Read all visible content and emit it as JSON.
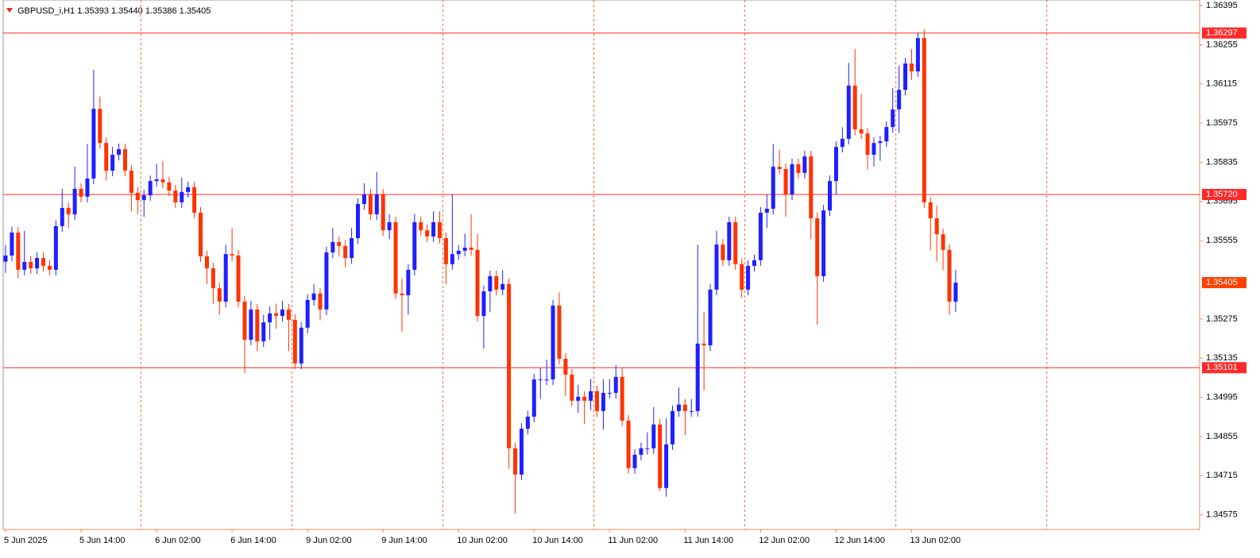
{
  "chart_data": {
    "type": "candlestick",
    "title": "GBPUSD_i,H1  1.35393 1.35440 1.35386 1.35405",
    "categories": [
      "5 Jun 2025",
      null,
      null,
      null,
      null,
      null,
      null,
      null,
      null,
      null,
      null,
      null,
      "5 Jun 14:00",
      null,
      null,
      null,
      null,
      null,
      null,
      null,
      null,
      null,
      null,
      null,
      "6 Jun 02:00",
      null,
      null,
      null,
      null,
      null,
      null,
      null,
      null,
      null,
      null,
      null,
      "6 Jun 14:00",
      null,
      null,
      null,
      null,
      null,
      null,
      null,
      null,
      null,
      null,
      null,
      "9 Jun 02:00",
      null,
      null,
      null,
      null,
      null,
      null,
      null,
      null,
      null,
      null,
      null,
      "9 Jun 14:00",
      null,
      null,
      null,
      null,
      null,
      null,
      null,
      null,
      null,
      null,
      null,
      "10 Jun 02:00",
      null,
      null,
      null,
      null,
      null,
      null,
      null,
      null,
      null,
      null,
      null,
      "10 Jun 14:00",
      null,
      null,
      null,
      null,
      null,
      null,
      null,
      null,
      null,
      null,
      null,
      "11 Jun 02:00",
      null,
      null,
      null,
      null,
      null,
      null,
      null,
      null,
      null,
      null,
      null,
      "11 Jun 14:00",
      null,
      null,
      null,
      null,
      null,
      null,
      null,
      null,
      null,
      null,
      null,
      "12 Jun 02:00",
      null,
      null,
      null,
      null,
      null,
      null,
      null,
      null,
      null,
      null,
      null,
      "12 Jun 14:00",
      null,
      null,
      null,
      null,
      null,
      null,
      null,
      null,
      null,
      null,
      null,
      "13 Jun 02:00",
      null,
      null,
      null,
      null,
      null,
      null,
      null
    ],
    "open": [
      1.3548,
      1.35502,
      1.35584,
      1.35451,
      1.35479,
      1.35456,
      1.35493,
      1.35465,
      1.35451,
      1.35607,
      1.35672,
      1.35649,
      1.3574,
      1.35712,
      1.35777,
      1.36026,
      1.35904,
      1.35805,
      1.35862,
      1.35882,
      1.35805,
      1.35726,
      1.357,
      1.35717,
      1.35768,
      1.35774,
      1.35763,
      1.35734,
      1.35692,
      1.35729,
      1.35746,
      1.35655,
      1.35499,
      1.35456,
      1.35385,
      1.35337,
      1.35507,
      1.35502,
      1.35337,
      1.35201,
      1.35309,
      1.35195,
      1.35263,
      1.35295,
      1.35286,
      1.35309,
      1.35272,
      1.35116,
      1.35244,
      1.35343,
      1.35366,
      1.35309,
      1.35513,
      1.3555,
      1.35536,
      1.35493,
      1.35564,
      1.35686,
      1.3572,
      1.35649,
      1.3572,
      1.35592,
      1.35621,
      1.35366,
      1.3536,
      1.35451,
      1.35621,
      1.35592,
      1.3557,
      1.35621,
      1.35564,
      1.35471,
      1.35507,
      1.35519,
      1.3553,
      1.35522,
      1.35286,
      1.35374,
      1.35428,
      1.3538,
      1.354,
      1.34813,
      1.34719,
      1.34883,
      1.34926,
      1.35059,
      1.35059,
      1.35059,
      1.35323,
      1.35133,
      1.35076,
      1.34983,
      1.34997,
      1.34983,
      1.35017,
      1.34946,
      1.35011,
      1.35011,
      1.35068,
      1.34912,
      1.34742,
      1.3479,
      1.34813,
      1.34813,
      1.34898,
      1.34671,
      1.34827,
      1.34946,
      1.34969,
      1.34946,
      1.34946,
      1.35187,
      1.35181,
      1.3538,
      1.35541,
      1.35485,
      1.35621,
      1.35471,
      1.3538,
      1.35465,
      1.35485,
      1.35655,
      1.35669,
      1.35819,
      1.35811,
      1.3572,
      1.35828,
      1.35797,
      1.35856,
      1.35635,
      1.35428,
      1.35663,
      1.35768,
      1.3589,
      1.35919,
      1.36109,
      1.35953,
      1.35938,
      1.35862,
      1.35904,
      1.3591,
      1.35961,
      1.36024,
      1.36094,
      1.36188,
      1.3616,
      1.36279,
      1.35692,
      1.35635,
      1.35578,
      1.35522,
      1.35337
    ],
    "high": [
      1.3554,
      1.35604,
      1.35604,
      1.3559,
      1.35499,
      1.35513,
      1.35513,
      1.35485,
      1.35627,
      1.3574,
      1.35692,
      1.3582,
      1.3576,
      1.359,
      1.36165,
      1.3607,
      1.35924,
      1.3589,
      1.35902,
      1.35902,
      1.35825,
      1.35746,
      1.35737,
      1.35788,
      1.3583,
      1.3584,
      1.35783,
      1.35754,
      1.3578,
      1.35766,
      1.35766,
      1.35675,
      1.35519,
      1.35476,
      1.35405,
      1.3554,
      1.356,
      1.35522,
      1.35357,
      1.3534,
      1.35329,
      1.3529,
      1.3532,
      1.3533,
      1.3534,
      1.35329,
      1.35292,
      1.35264,
      1.35363,
      1.354,
      1.35386,
      1.35533,
      1.356,
      1.3557,
      1.35556,
      1.356,
      1.35706,
      1.3576,
      1.3574,
      1.358,
      1.3574,
      1.3565,
      1.35641,
      1.3542,
      1.35471,
      1.3565,
      1.35641,
      1.35612,
      1.3566,
      1.3566,
      1.35584,
      1.3572,
      1.35539,
      1.3558,
      1.3565,
      1.3558,
      1.35394,
      1.35448,
      1.35448,
      1.3545,
      1.3542,
      1.34833,
      1.34903,
      1.34946,
      1.35079,
      1.351,
      1.3513,
      1.35343,
      1.3537,
      1.35153,
      1.35096,
      1.3504,
      1.35017,
      1.3506,
      1.35037,
      1.3506,
      1.3506,
      1.3511,
      1.351,
      1.34932,
      1.3481,
      1.34833,
      1.3487,
      1.3496,
      1.34918,
      1.3492,
      1.34966,
      1.3503,
      1.34989,
      1.3499,
      1.3554,
      1.353,
      1.354,
      1.3559,
      1.35561,
      1.35641,
      1.35641,
      1.35491,
      1.35485,
      1.35505,
      1.35675,
      1.3572,
      1.359,
      1.3588,
      1.35831,
      1.35848,
      1.35848,
      1.35876,
      1.35876,
      1.35655,
      1.35683,
      1.35788,
      1.3591,
      1.3596,
      1.3619,
      1.3624,
      1.3608,
      1.35958,
      1.35924,
      1.3593,
      1.35981,
      1.361,
      1.3618,
      1.36208,
      1.3624,
      1.36299,
      1.3631,
      1.35712,
      1.3568,
      1.35598,
      1.35542,
      1.3545
    ],
    "low": [
      1.3544,
      1.35482,
      1.3542,
      1.35431,
      1.35436,
      1.35436,
      1.35445,
      1.35431,
      1.35431,
      1.35587,
      1.356,
      1.35629,
      1.35692,
      1.35692,
      1.35757,
      1.35884,
      1.3577,
      1.35785,
      1.35842,
      1.35785,
      1.3566,
      1.3565,
      1.3564,
      1.35697,
      1.35748,
      1.35743,
      1.35714,
      1.35672,
      1.35672,
      1.35709,
      1.35635,
      1.35479,
      1.354,
      1.3533,
      1.3529,
      1.35317,
      1.35482,
      1.35317,
      1.35082,
      1.35181,
      1.3516,
      1.35175,
      1.352,
      1.3524,
      1.35266,
      1.3516,
      1.35096,
      1.35096,
      1.35224,
      1.35323,
      1.3527,
      1.35289,
      1.35493,
      1.355,
      1.3546,
      1.35473,
      1.35544,
      1.35666,
      1.35629,
      1.35629,
      1.35572,
      1.3556,
      1.35346,
      1.3523,
      1.3529,
      1.35431,
      1.35572,
      1.3555,
      1.3555,
      1.35544,
      1.354,
      1.35451,
      1.35487,
      1.35499,
      1.35502,
      1.35266,
      1.3517,
      1.353,
      1.3536,
      1.3536,
      1.3474,
      1.3458,
      1.34699,
      1.34863,
      1.34906,
      1.3499,
      1.35039,
      1.35039,
      1.35113,
      1.35,
      1.34963,
      1.3494,
      1.349,
      1.3495,
      1.34926,
      1.3488,
      1.34991,
      1.34991,
      1.34892,
      1.34722,
      1.34722,
      1.3477,
      1.3479,
      1.34793,
      1.3466,
      1.3464,
      1.34807,
      1.34926,
      1.3486,
      1.34926,
      1.34926,
      1.3502,
      1.35161,
      1.3536,
      1.35465,
      1.35465,
      1.35451,
      1.3535,
      1.3536,
      1.35445,
      1.35465,
      1.356,
      1.35649,
      1.35791,
      1.3564,
      1.357,
      1.35777,
      1.35777,
      1.3556,
      1.35255,
      1.35408,
      1.35643,
      1.3572,
      1.3587,
      1.35899,
      1.35933,
      1.35918,
      1.3581,
      1.3582,
      1.3584,
      1.3589,
      1.35941,
      1.3594,
      1.36074,
      1.3613,
      1.3614,
      1.35672,
      1.3552,
      1.3548,
      1.3545,
      1.3529,
      1.353
    ],
    "close": [
      1.35502,
      1.35584,
      1.35451,
      1.35479,
      1.35456,
      1.35493,
      1.35465,
      1.35451,
      1.35607,
      1.35672,
      1.35649,
      1.3574,
      1.35712,
      1.35777,
      1.36026,
      1.35904,
      1.35805,
      1.35862,
      1.35882,
      1.35805,
      1.35726,
      1.357,
      1.35717,
      1.35768,
      1.35774,
      1.35763,
      1.35734,
      1.35692,
      1.35729,
      1.35746,
      1.35655,
      1.35499,
      1.35456,
      1.35385,
      1.35337,
      1.35507,
      1.35502,
      1.35337,
      1.35201,
      1.35309,
      1.35195,
      1.35263,
      1.35295,
      1.35286,
      1.35309,
      1.35272,
      1.35116,
      1.35244,
      1.35343,
      1.35366,
      1.35309,
      1.35513,
      1.3555,
      1.35536,
      1.35493,
      1.35564,
      1.35686,
      1.3572,
      1.35649,
      1.3572,
      1.35592,
      1.35621,
      1.35366,
      1.3536,
      1.35451,
      1.35621,
      1.35592,
      1.3557,
      1.35621,
      1.35564,
      1.35471,
      1.35507,
      1.35519,
      1.3553,
      1.35522,
      1.35286,
      1.35374,
      1.35428,
      1.3538,
      1.354,
      1.34813,
      1.34719,
      1.34883,
      1.34926,
      1.35059,
      1.35059,
      1.35059,
      1.35323,
      1.35133,
      1.35076,
      1.34983,
      1.34997,
      1.34983,
      1.35017,
      1.34946,
      1.35011,
      1.35011,
      1.35068,
      1.34912,
      1.34742,
      1.3479,
      1.34813,
      1.34813,
      1.34898,
      1.34671,
      1.34827,
      1.34946,
      1.34969,
      1.34946,
      1.34946,
      1.35187,
      1.35181,
      1.3538,
      1.35541,
      1.35485,
      1.35621,
      1.35471,
      1.3538,
      1.35465,
      1.35485,
      1.35655,
      1.35669,
      1.35819,
      1.35811,
      1.3572,
      1.35828,
      1.35797,
      1.35856,
      1.35635,
      1.35428,
      1.35663,
      1.35768,
      1.3589,
      1.35919,
      1.36109,
      1.35953,
      1.35938,
      1.35862,
      1.35904,
      1.3591,
      1.35961,
      1.36024,
      1.36094,
      1.36188,
      1.3616,
      1.36279,
      1.35692,
      1.35635,
      1.35578,
      1.35522,
      1.35337,
      1.35405
    ],
    "up_color": "#1f1fff",
    "down_color": "#ff3300",
    "ylim": [
      1.34523,
      1.36415
    ],
    "yticks": [
      1.36395,
      1.36255,
      1.36115,
      1.35975,
      1.35835,
      1.35695,
      1.35555,
      1.35275,
      1.35135,
      1.34995,
      1.34855,
      1.34715,
      1.34575
    ],
    "hlines": [
      1.36297,
      {
        "value": 1.3572,
        "label": "1.35720"
      },
      1.35101
    ],
    "hline_color": "#ff2a2a",
    "last_price": 1.35405,
    "last_price_color": "#ff4000"
  }
}
